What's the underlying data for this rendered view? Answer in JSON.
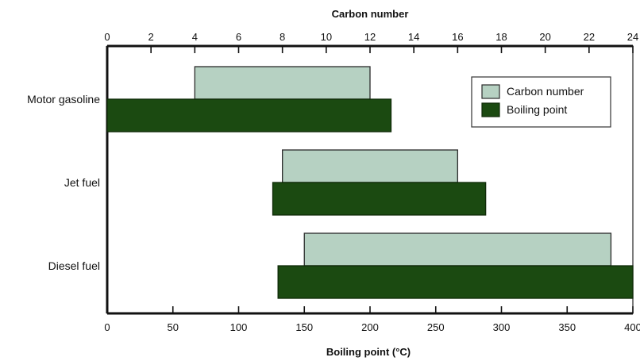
{
  "chart_data": {
    "type": "bar",
    "orientation": "horizontal-range",
    "categories": [
      "Motor gasoline",
      "Jet fuel",
      "Diesel fuel"
    ],
    "top_axis": {
      "label": "Carbon number",
      "range": [
        0,
        24
      ],
      "ticks": [
        0,
        2,
        4,
        6,
        8,
        10,
        12,
        14,
        16,
        18,
        20,
        22,
        24
      ]
    },
    "bottom_axis": {
      "label": "Boiling point (°C)",
      "range": [
        0,
        400
      ],
      "ticks": [
        0,
        50,
        100,
        150,
        200,
        250,
        300,
        350,
        400
      ]
    },
    "series": [
      {
        "name": "Carbon number",
        "axis": "top",
        "color": "#b6d1c2",
        "ranges": [
          [
            4,
            12
          ],
          [
            8,
            16
          ],
          [
            9,
            23
          ]
        ]
      },
      {
        "name": "Boiling point",
        "axis": "bottom",
        "color": "#1b4a11",
        "ranges": [
          [
            0,
            216
          ],
          [
            126,
            288
          ],
          [
            130,
            400
          ]
        ]
      }
    ],
    "legend": {
      "position": "top-right"
    },
    "grid": false
  }
}
